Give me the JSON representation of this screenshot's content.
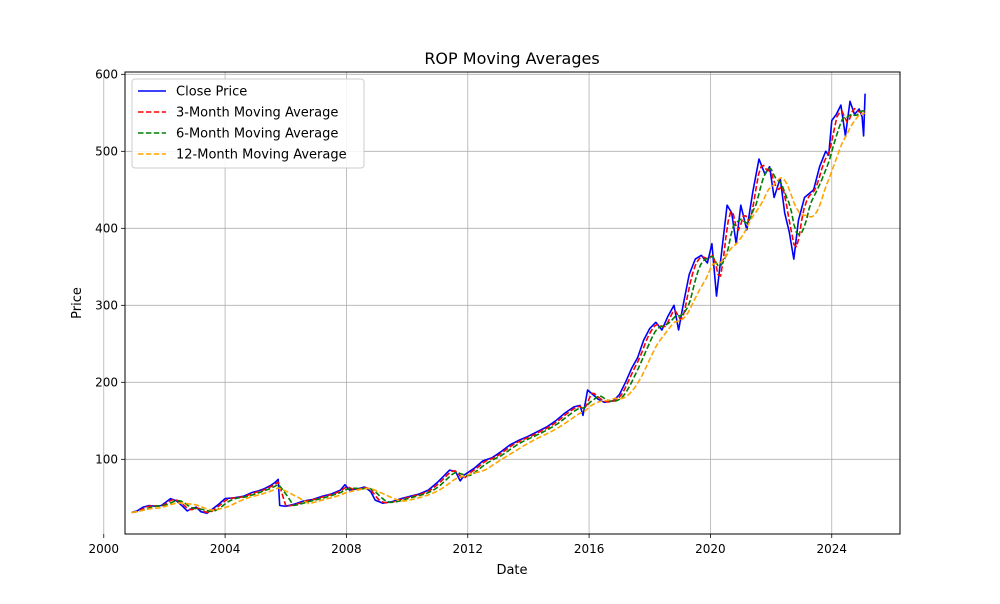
{
  "chart_data": {
    "type": "line",
    "title": "ROP Moving Averages",
    "xlabel": "Date",
    "ylabel": "Price",
    "xlim": [
      2000.7,
      2026.25
    ],
    "ylim": [
      3,
      603
    ],
    "xticks": [
      2000,
      2004,
      2008,
      2012,
      2016,
      2020,
      2024
    ],
    "xtick_labels": [
      "2000",
      "2004",
      "2008",
      "2012",
      "2016",
      "2020",
      "2024"
    ],
    "yticks": [
      100,
      200,
      300,
      400,
      500,
      600
    ],
    "ytick_labels": [
      "100",
      "200",
      "300",
      "400",
      "500",
      "600"
    ],
    "grid": true,
    "legend_position": "top-left",
    "close_anchors": [
      [
        2000.92,
        31
      ],
      [
        2001.1,
        33
      ],
      [
        2001.3,
        38
      ],
      [
        2001.5,
        40
      ],
      [
        2001.7,
        39
      ],
      [
        2001.9,
        40
      ],
      [
        2002.2,
        49
      ],
      [
        2002.4,
        46
      ],
      [
        2002.6,
        39
      ],
      [
        2002.75,
        33
      ],
      [
        2002.9,
        36
      ],
      [
        2003.05,
        38
      ],
      [
        2003.2,
        32
      ],
      [
        2003.4,
        30
      ],
      [
        2003.6,
        36
      ],
      [
        2003.8,
        42
      ],
      [
        2004.0,
        49
      ],
      [
        2004.3,
        50
      ],
      [
        2004.6,
        52
      ],
      [
        2004.9,
        57
      ],
      [
        2005.1,
        59
      ],
      [
        2005.3,
        62
      ],
      [
        2005.5,
        66
      ],
      [
        2005.65,
        70
      ],
      [
        2005.75,
        74
      ],
      [
        2005.8,
        40
      ],
      [
        2006.0,
        39
      ],
      [
        2006.3,
        42
      ],
      [
        2006.6,
        46
      ],
      [
        2006.9,
        48
      ],
      [
        2007.2,
        52
      ],
      [
        2007.5,
        55
      ],
      [
        2007.8,
        60
      ],
      [
        2007.95,
        67
      ],
      [
        2008.1,
        60
      ],
      [
        2008.4,
        62
      ],
      [
        2008.6,
        64
      ],
      [
        2008.8,
        58
      ],
      [
        2008.95,
        47
      ],
      [
        2009.2,
        43
      ],
      [
        2009.5,
        45
      ],
      [
        2009.8,
        49
      ],
      [
        2010.1,
        52
      ],
      [
        2010.4,
        55
      ],
      [
        2010.7,
        60
      ],
      [
        2011.0,
        70
      ],
      [
        2011.2,
        78
      ],
      [
        2011.4,
        86
      ],
      [
        2011.6,
        84
      ],
      [
        2011.75,
        72
      ],
      [
        2011.9,
        80
      ],
      [
        2012.2,
        88
      ],
      [
        2012.5,
        98
      ],
      [
        2012.8,
        102
      ],
      [
        2013.1,
        110
      ],
      [
        2013.4,
        119
      ],
      [
        2013.7,
        125
      ],
      [
        2014.0,
        130
      ],
      [
        2014.3,
        136
      ],
      [
        2014.6,
        142
      ],
      [
        2014.9,
        150
      ],
      [
        2015.2,
        160
      ],
      [
        2015.5,
        168
      ],
      [
        2015.7,
        170
      ],
      [
        2015.8,
        157
      ],
      [
        2015.95,
        190
      ],
      [
        2016.1,
        185
      ],
      [
        2016.3,
        178
      ],
      [
        2016.5,
        174
      ],
      [
        2016.8,
        176
      ],
      [
        2017.0,
        184
      ],
      [
        2017.2,
        200
      ],
      [
        2017.4,
        218
      ],
      [
        2017.6,
        232
      ],
      [
        2017.8,
        255
      ],
      [
        2018.0,
        270
      ],
      [
        2018.2,
        278
      ],
      [
        2018.4,
        268
      ],
      [
        2018.6,
        286
      ],
      [
        2018.8,
        300
      ],
      [
        2018.95,
        268
      ],
      [
        2019.1,
        300
      ],
      [
        2019.3,
        340
      ],
      [
        2019.5,
        360
      ],
      [
        2019.7,
        365
      ],
      [
        2019.9,
        355
      ],
      [
        2020.05,
        380
      ],
      [
        2020.2,
        312
      ],
      [
        2020.4,
        380
      ],
      [
        2020.55,
        430
      ],
      [
        2020.7,
        420
      ],
      [
        2020.85,
        380
      ],
      [
        2021.0,
        430
      ],
      [
        2021.2,
        398
      ],
      [
        2021.4,
        448
      ],
      [
        2021.6,
        490
      ],
      [
        2021.8,
        470
      ],
      [
        2021.95,
        480
      ],
      [
        2022.1,
        440
      ],
      [
        2022.3,
        465
      ],
      [
        2022.45,
        420
      ],
      [
        2022.6,
        395
      ],
      [
        2022.75,
        360
      ],
      [
        2022.9,
        410
      ],
      [
        2023.1,
        440
      ],
      [
        2023.4,
        450
      ],
      [
        2023.6,
        480
      ],
      [
        2023.8,
        500
      ],
      [
        2023.9,
        495
      ],
      [
        2024.0,
        540
      ],
      [
        2024.15,
        548
      ],
      [
        2024.3,
        560
      ],
      [
        2024.45,
        520
      ],
      [
        2024.6,
        565
      ],
      [
        2024.75,
        548
      ],
      [
        2024.9,
        555
      ],
      [
        2025.0,
        545
      ],
      [
        2025.05,
        520
      ],
      [
        2025.1,
        575
      ]
    ],
    "series": [
      {
        "name": "Close Price",
        "color": "#0000ff",
        "style": "solid",
        "window": 1
      },
      {
        "name": "3-Month Moving Average",
        "color": "#ff0000",
        "style": "dashed",
        "window": 3
      },
      {
        "name": "6-Month Moving Average",
        "color": "#008000",
        "style": "dashed",
        "window": 6
      },
      {
        "name": "12-Month Moving Average",
        "color": "#ffa500",
        "style": "dashed",
        "window": 12
      }
    ]
  }
}
